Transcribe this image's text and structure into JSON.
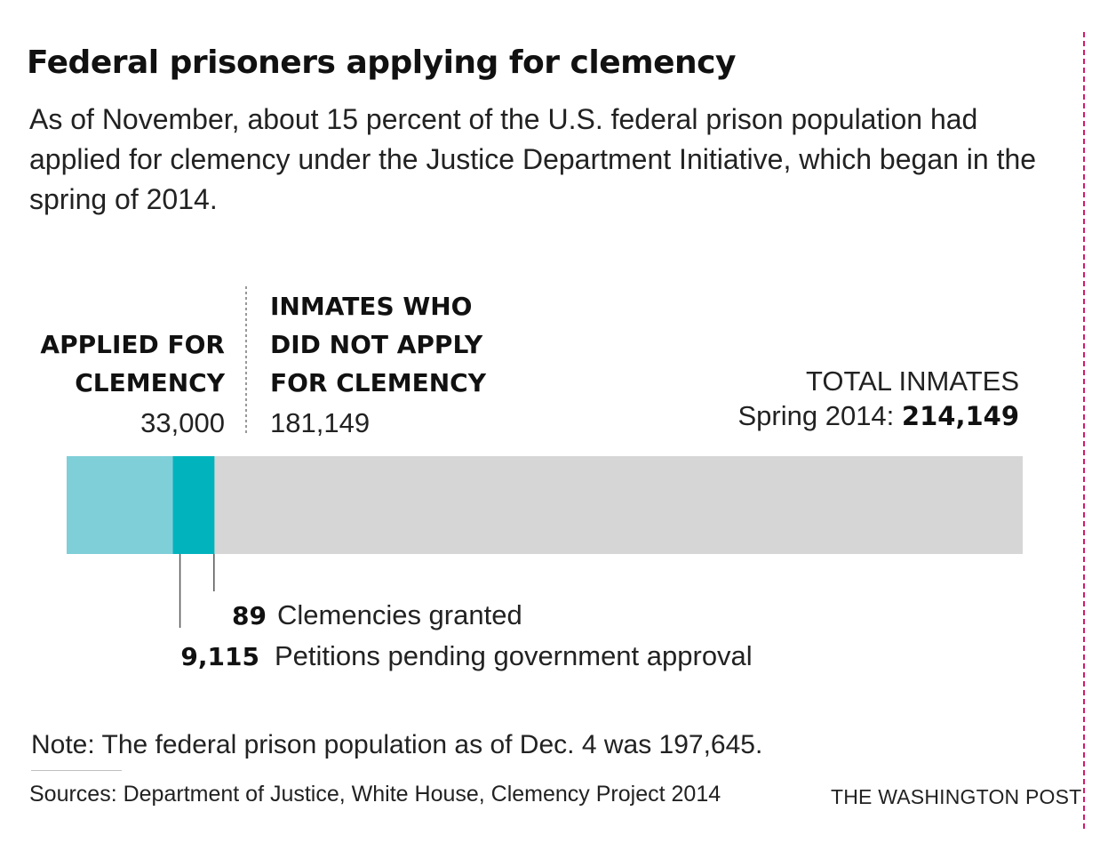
{
  "title": "Federal prisoners applying for clemency",
  "subtitle": "As of November, about 15 percent of the U.S. federal prison population had applied for clemency under the Justice Department Initiative, which began in the spring of 2014.",
  "chart_data": {
    "type": "bar",
    "orientation": "horizontal-stacked",
    "total": 214149,
    "segments": [
      {
        "label": "APPLIED FOR CLEMENCY",
        "value": 33000,
        "value_label": "33,000",
        "color": "#7ecfd8"
      },
      {
        "label": "INMATES WHO DID NOT APPLY FOR CLEMENCY",
        "value": 181149,
        "value_label": "181,149",
        "color": "#d6d6d6"
      }
    ],
    "sub_segments": [
      {
        "value": 9115,
        "value_label": "9,115",
        "description": "Petitions pending government approval",
        "color": "#00b3bd"
      },
      {
        "value": 89,
        "value_label": "89",
        "description": "Clemencies granted",
        "color": "#00b3bd"
      }
    ],
    "labels": {
      "applied_line1": "APPLIED FOR",
      "applied_line2": "CLEMENCY",
      "applied_value": "33,000",
      "notapplied_line1": "INMATES WHO",
      "notapplied_line2": "DID NOT APPLY",
      "notapplied_line3": "FOR CLEMENCY",
      "notapplied_value": "181,149",
      "total_line1": "TOTAL INMATES",
      "total_prefix": "Spring 2014: ",
      "total_value": "214,149"
    }
  },
  "note": "Note: The federal prison population as of Dec. 4 was 197,645.",
  "sources": "Sources: Department of Justice, White House, Clemency Project 2014",
  "credit": "THE WASHINGTON POST"
}
